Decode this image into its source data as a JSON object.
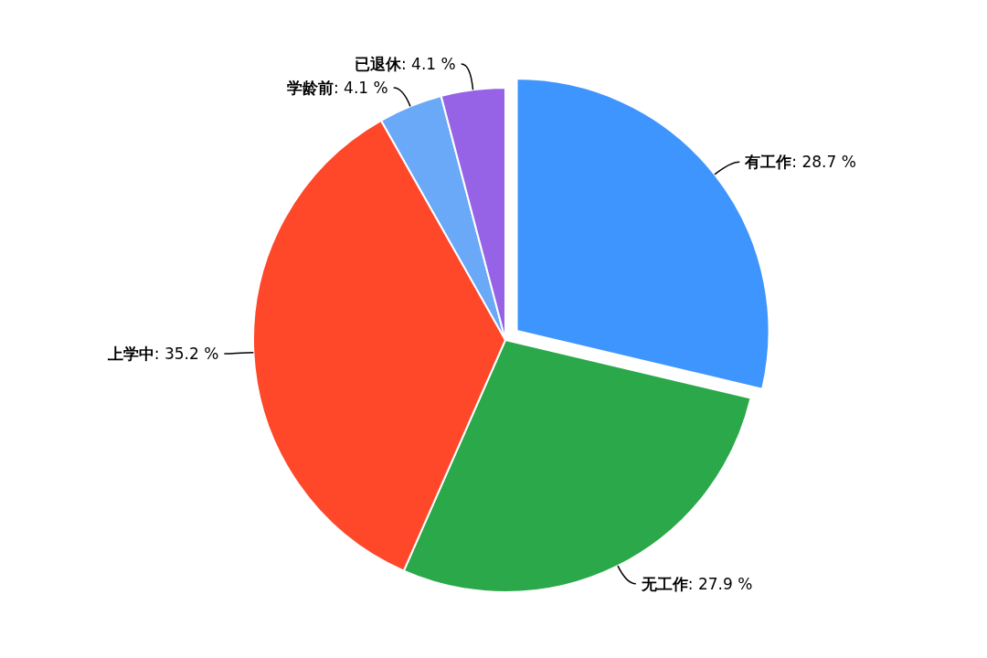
{
  "chart_data": {
    "type": "pie",
    "categories": [
      "有工作",
      "无工作",
      "上学中",
      "学龄前",
      "已退休"
    ],
    "values": [
      28.7,
      27.9,
      35.2,
      4.1,
      4.1
    ],
    "value_labels": [
      ": 28.7 %",
      ": 27.9 %",
      ": 35.2 %",
      ": 4.1 %",
      ": 4.1 %"
    ],
    "colors": [
      "#3e95fe",
      "#2aa84a",
      "#ff472a",
      "#6aa8f8",
      "#9663e6"
    ]
  }
}
